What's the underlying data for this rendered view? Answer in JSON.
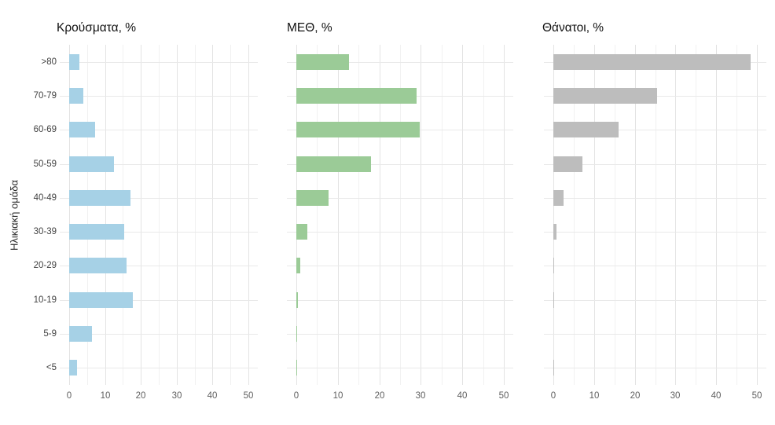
{
  "figure": {
    "ylabel": "Ηλικιακή ομάδα"
  },
  "chart_data": [
    {
      "type": "bar",
      "orientation": "horizontal",
      "title": "Κρούσματα, %",
      "categories": [
        ">80",
        "70-79",
        "60-69",
        "50-59",
        "40-49",
        "30-39",
        "20-29",
        "10-19",
        "5-9",
        "<5"
      ],
      "values": [
        2.8,
        3.9,
        7.2,
        12.4,
        17.2,
        15.3,
        16.0,
        17.7,
        6.3,
        2.3
      ],
      "bar_color": "#a6d1e6",
      "xlabel": "",
      "ylabel": "Ηλικιακή ομάδα",
      "xlim": [
        0,
        50
      ],
      "xticks": [
        0,
        10,
        20,
        30,
        40,
        50
      ],
      "minor_xticks": [
        5,
        15,
        25,
        35,
        45
      ],
      "grid": "on",
      "legend": "none"
    },
    {
      "type": "bar",
      "orientation": "horizontal",
      "title": "ΜΕΘ, %",
      "categories": [
        ">80",
        "70-79",
        "60-69",
        "50-59",
        "40-49",
        "30-39",
        "20-29",
        "10-19",
        "5-9",
        "<5"
      ],
      "values": [
        12.7,
        28.9,
        29.7,
        18.0,
        7.7,
        2.6,
        1.0,
        0.3,
        0.1,
        0.2
      ],
      "bar_color": "#9bcb97",
      "xlabel": "",
      "ylabel": "",
      "xlim": [
        0,
        50
      ],
      "xticks": [
        0,
        10,
        20,
        30,
        40,
        50
      ],
      "minor_xticks": [
        5,
        15,
        25,
        35,
        45
      ],
      "grid": "on",
      "legend": "none"
    },
    {
      "type": "bar",
      "orientation": "horizontal",
      "title": "Θάνατοι, %",
      "categories": [
        ">80",
        "70-79",
        "60-69",
        "50-59",
        "40-49",
        "30-39",
        "20-29",
        "10-19",
        "5-9",
        "<5"
      ],
      "values": [
        48.5,
        25.4,
        16.1,
        7.2,
        2.5,
        0.8,
        0.1,
        0.2,
        0.0,
        0.1
      ],
      "bar_color": "#bdbdbd",
      "xlabel": "",
      "ylabel": "",
      "xlim": [
        0,
        50
      ],
      "xticks": [
        0,
        10,
        20,
        30,
        40,
        50
      ],
      "minor_xticks": [
        5,
        15,
        25,
        35,
        45
      ],
      "grid": "on",
      "legend": "none"
    }
  ]
}
